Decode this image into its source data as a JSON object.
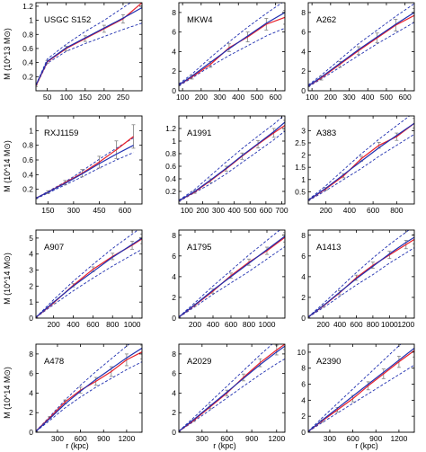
{
  "colors": {
    "measured": "#e8202a",
    "model": "#1f2fb0",
    "errorbar": "#808080",
    "axis": "#000000"
  },
  "xlabel": "r (kpc)",
  "row_ylabels": [
    "M (10^13 M⊙)",
    "M (10^14 M⊙)",
    "M (10^14 M⊙)",
    "M (10^14 M⊙)"
  ],
  "chart_data": [
    {
      "type": "line",
      "name": "USGC S152",
      "xlim": [
        20,
        300
      ],
      "ylim": [
        0,
        1.25
      ],
      "xticks": [
        50,
        100,
        150,
        200,
        250
      ],
      "yticks": [
        0.2,
        0.4,
        0.6,
        0.8,
        1,
        1.2
      ],
      "x": [
        20,
        50,
        100,
        150,
        200,
        250,
        300
      ],
      "model": [
        0.08,
        0.42,
        0.61,
        0.75,
        0.89,
        1.03,
        1.18
      ],
      "band_upper": [
        0.08,
        0.45,
        0.66,
        0.84,
        1.0,
        1.18,
        1.36
      ],
      "band_lower": [
        0.07,
        0.39,
        0.56,
        0.67,
        0.77,
        0.87,
        0.96
      ],
      "measured": [
        0.07,
        0.41,
        0.6,
        0.74,
        0.88,
        1.02,
        1.25
      ],
      "errors": [
        0.01,
        0.02,
        0.03,
        0.04,
        0.05,
        0.06,
        0.08
      ]
    },
    {
      "type": "line",
      "name": "MKW4",
      "xlim": [
        80,
        650
      ],
      "ylim": [
        0,
        9
      ],
      "xticks": [
        100,
        200,
        300,
        400,
        500,
        600
      ],
      "yticks": [
        0,
        2,
        4,
        6,
        8
      ],
      "x": [
        80,
        150,
        250,
        350,
        450,
        550,
        650
      ],
      "model": [
        0.6,
        1.5,
        2.9,
        4.3,
        5.6,
        6.9,
        8.0
      ],
      "band_upper": [
        0.7,
        1.7,
        3.4,
        5.0,
        6.5,
        7.9,
        9.2
      ],
      "band_lower": [
        0.5,
        1.3,
        2.5,
        3.6,
        4.6,
        5.6,
        6.4
      ],
      "measured": [
        0.6,
        1.4,
        2.7,
        4.4,
        5.5,
        6.8,
        7.5
      ],
      "errors": [
        0.1,
        0.2,
        0.3,
        0.4,
        0.5,
        0.6,
        0.7
      ]
    },
    {
      "type": "line",
      "name": "A262",
      "xlim": [
        80,
        650
      ],
      "ylim": [
        0,
        9
      ],
      "xticks": [
        100,
        200,
        300,
        400,
        500,
        600
      ],
      "yticks": [
        0,
        2,
        4,
        6,
        8
      ],
      "x": [
        80,
        150,
        250,
        350,
        450,
        550,
        650
      ],
      "model": [
        0.5,
        1.4,
        2.8,
        4.2,
        5.5,
        6.8,
        8.0
      ],
      "band_upper": [
        0.6,
        1.6,
        3.2,
        4.8,
        6.2,
        7.6,
        8.9
      ],
      "band_lower": [
        0.4,
        1.2,
        2.4,
        3.6,
        4.8,
        5.9,
        7.0
      ],
      "measured": [
        0.5,
        1.3,
        2.7,
        4.1,
        5.4,
        6.7,
        7.7
      ],
      "errors": [
        0.1,
        0.2,
        0.3,
        0.4,
        0.5,
        0.6,
        0.7
      ]
    },
    {
      "type": "line",
      "name": "RXJ1159",
      "xlim": [
        80,
        700
      ],
      "ylim": [
        0,
        1.2
      ],
      "xticks": [
        150,
        300,
        450,
        600
      ],
      "yticks": [
        0.2,
        0.4,
        0.6,
        0.8,
        1
      ],
      "x": [
        80,
        150,
        250,
        350,
        450,
        550,
        650
      ],
      "model": [
        0.08,
        0.16,
        0.28,
        0.41,
        0.55,
        0.68,
        0.8
      ],
      "band_upper": [
        0.08,
        0.17,
        0.3,
        0.45,
        0.61,
        0.76,
        0.9
      ],
      "band_lower": [
        0.07,
        0.15,
        0.26,
        0.37,
        0.49,
        0.6,
        0.7
      ],
      "measured": [
        0.08,
        0.16,
        0.29,
        0.42,
        0.57,
        0.74,
        0.92
      ],
      "errors": [
        0.01,
        0.02,
        0.03,
        0.05,
        0.08,
        0.12,
        0.16
      ]
    },
    {
      "type": "line",
      "name": "A1991",
      "xlim": [
        50,
        720
      ],
      "ylim": [
        0,
        1.4
      ],
      "xticks": [
        100,
        200,
        300,
        400,
        500,
        600,
        700
      ],
      "yticks": [
        0.2,
        0.4,
        0.6,
        0.8,
        1,
        1.2
      ],
      "x": [
        50,
        150,
        250,
        350,
        450,
        550,
        650,
        720
      ],
      "model": [
        0.05,
        0.2,
        0.38,
        0.57,
        0.77,
        0.96,
        1.15,
        1.3
      ],
      "band_upper": [
        0.06,
        0.23,
        0.45,
        0.67,
        0.88,
        1.08,
        1.27,
        1.42
      ],
      "band_lower": [
        0.04,
        0.18,
        0.32,
        0.48,
        0.66,
        0.84,
        1.02,
        1.16
      ],
      "measured": [
        0.05,
        0.19,
        0.37,
        0.56,
        0.76,
        0.95,
        1.13,
        1.25
      ],
      "errors": [
        0.01,
        0.02,
        0.03,
        0.04,
        0.05,
        0.06,
        0.07,
        0.08
      ]
    },
    {
      "type": "line",
      "name": "A383",
      "xlim": [
        50,
        950
      ],
      "ylim": [
        0,
        3.6
      ],
      "xticks": [
        200,
        400,
        600,
        800
      ],
      "yticks": [
        0.5,
        1,
        1.5,
        2,
        2.5,
        3
      ],
      "x": [
        50,
        200,
        350,
        500,
        650,
        800,
        950
      ],
      "model": [
        0.15,
        0.65,
        1.2,
        1.75,
        2.3,
        2.8,
        3.3
      ],
      "band_upper": [
        0.17,
        0.75,
        1.4,
        2.05,
        2.65,
        3.2,
        3.75
      ],
      "band_lower": [
        0.13,
        0.55,
        1.0,
        1.45,
        1.95,
        2.4,
        2.85
      ],
      "measured": [
        0.15,
        0.62,
        1.15,
        1.85,
        2.4,
        2.75,
        3.3
      ],
      "errors": [
        0.02,
        0.05,
        0.08,
        0.1,
        0.12,
        0.15,
        0.2
      ]
    },
    {
      "type": "line",
      "name": "A907",
      "xlim": [
        20,
        1100
      ],
      "ylim": [
        0,
        5.5
      ],
      "xticks": [
        200,
        400,
        600,
        800,
        1000
      ],
      "yticks": [
        0,
        1,
        2,
        3,
        4,
        5
      ],
      "x": [
        20,
        200,
        400,
        600,
        800,
        1000,
        1100
      ],
      "model": [
        0.05,
        1.0,
        2.0,
        2.9,
        3.8,
        4.6,
        5.0
      ],
      "band_upper": [
        0.06,
        1.15,
        2.3,
        3.35,
        4.35,
        5.25,
        5.7
      ],
      "band_lower": [
        0.04,
        0.85,
        1.7,
        2.5,
        3.25,
        3.95,
        4.3
      ],
      "measured": [
        0.05,
        0.95,
        2.05,
        3.05,
        3.85,
        4.55,
        4.95
      ],
      "errors": [
        0.01,
        0.05,
        0.1,
        0.15,
        0.2,
        0.25,
        0.3
      ]
    },
    {
      "type": "line",
      "name": "A1795",
      "xlim": [
        20,
        1200
      ],
      "ylim": [
        0,
        8.5
      ],
      "xticks": [
        200,
        400,
        600,
        800,
        1000
      ],
      "yticks": [
        0,
        2,
        4,
        6,
        8
      ],
      "x": [
        20,
        200,
        400,
        600,
        800,
        1000,
        1200
      ],
      "model": [
        0.1,
        1.3,
        2.7,
        4.0,
        5.3,
        6.6,
        7.9
      ],
      "band_upper": [
        0.12,
        1.5,
        3.1,
        4.6,
        6.1,
        7.5,
        8.9
      ],
      "band_lower": [
        0.08,
        1.1,
        2.3,
        3.4,
        4.5,
        5.7,
        6.9
      ],
      "measured": [
        0.1,
        1.25,
        2.6,
        4.1,
        5.4,
        6.5,
        7.8
      ],
      "errors": [
        0.02,
        0.1,
        0.2,
        0.25,
        0.3,
        0.35,
        0.45
      ]
    },
    {
      "type": "line",
      "name": "A1413",
      "xlim": [
        20,
        1300
      ],
      "ylim": [
        0,
        8.5
      ],
      "xticks": [
        200,
        400,
        600,
        800,
        1000,
        1200
      ],
      "yticks": [
        0,
        2,
        4,
        6,
        8
      ],
      "x": [
        20,
        200,
        400,
        600,
        800,
        1000,
        1200,
        1300
      ],
      "model": [
        0.1,
        1.2,
        2.5,
        3.8,
        5.0,
        6.2,
        7.3,
        7.8
      ],
      "band_upper": [
        0.12,
        1.4,
        2.9,
        4.4,
        5.8,
        7.1,
        8.3,
        8.9
      ],
      "band_lower": [
        0.08,
        1.0,
        2.1,
        3.2,
        4.2,
        5.3,
        6.3,
        6.8
      ],
      "measured": [
        0.1,
        1.15,
        2.45,
        3.9,
        5.1,
        6.1,
        7.1,
        7.6
      ],
      "errors": [
        0.02,
        0.1,
        0.2,
        0.25,
        0.3,
        0.35,
        0.4,
        0.45
      ]
    },
    {
      "type": "line",
      "name": "A478",
      "xlim": [
        20,
        1400
      ],
      "ylim": [
        0,
        9
      ],
      "xticks": [
        300,
        600,
        900,
        1200
      ],
      "yticks": [
        0,
        2,
        4,
        6,
        8
      ],
      "x": [
        20,
        200,
        400,
        600,
        800,
        1000,
        1200,
        1400
      ],
      "model": [
        0.1,
        1.4,
        2.9,
        4.2,
        5.4,
        6.5,
        7.6,
        8.6
      ],
      "band_upper": [
        0.12,
        1.6,
        3.3,
        4.8,
        6.2,
        7.5,
        8.8,
        10.0
      ],
      "band_lower": [
        0.08,
        1.2,
        2.5,
        3.6,
        4.6,
        5.5,
        6.4,
        7.2
      ],
      "measured": [
        0.1,
        1.5,
        3.1,
        4.3,
        5.2,
        6.2,
        7.4,
        8.2
      ],
      "errors": [
        0.02,
        0.1,
        0.2,
        0.3,
        0.4,
        0.5,
        0.6,
        0.7
      ]
    },
    {
      "type": "line",
      "name": "A2029",
      "xlim": [
        20,
        1300
      ],
      "ylim": [
        0,
        9
      ],
      "xticks": [
        300,
        600,
        900,
        1200
      ],
      "yticks": [
        0,
        2,
        4,
        6,
        8
      ],
      "x": [
        20,
        200,
        400,
        600,
        800,
        1000,
        1200,
        1300
      ],
      "model": [
        0.1,
        1.3,
        2.7,
        4.1,
        5.5,
        6.9,
        8.2,
        8.8
      ],
      "band_upper": [
        0.12,
        1.5,
        3.1,
        4.7,
        6.3,
        7.9,
        9.4,
        10.1
      ],
      "band_lower": [
        0.08,
        1.1,
        2.3,
        3.5,
        4.7,
        5.9,
        7.0,
        7.5
      ],
      "measured": [
        0.1,
        1.2,
        2.6,
        4.0,
        5.6,
        7.1,
        8.4,
        9.0
      ],
      "errors": [
        0.02,
        0.1,
        0.2,
        0.3,
        0.35,
        0.4,
        0.5,
        0.55
      ]
    },
    {
      "type": "line",
      "name": "A2390",
      "xlim": [
        20,
        1400
      ],
      "ylim": [
        0,
        11
      ],
      "xticks": [
        300,
        600,
        900,
        1200
      ],
      "yticks": [
        0,
        2,
        4,
        6,
        8,
        10
      ],
      "x": [
        20,
        200,
        400,
        600,
        800,
        1000,
        1200,
        1400
      ],
      "model": [
        0.1,
        1.5,
        3.0,
        4.5,
        6.0,
        7.5,
        9.0,
        10.5
      ],
      "band_upper": [
        0.12,
        1.8,
        3.6,
        5.4,
        7.2,
        9.0,
        10.8,
        12.5
      ],
      "band_lower": [
        0.08,
        1.2,
        2.4,
        3.6,
        4.8,
        6.0,
        7.2,
        8.4
      ],
      "measured": [
        0.1,
        1.4,
        2.8,
        4.2,
        5.8,
        7.3,
        8.8,
        10.2
      ],
      "errors": [
        0.02,
        0.15,
        0.3,
        0.4,
        0.5,
        0.6,
        0.7,
        0.8
      ]
    }
  ]
}
